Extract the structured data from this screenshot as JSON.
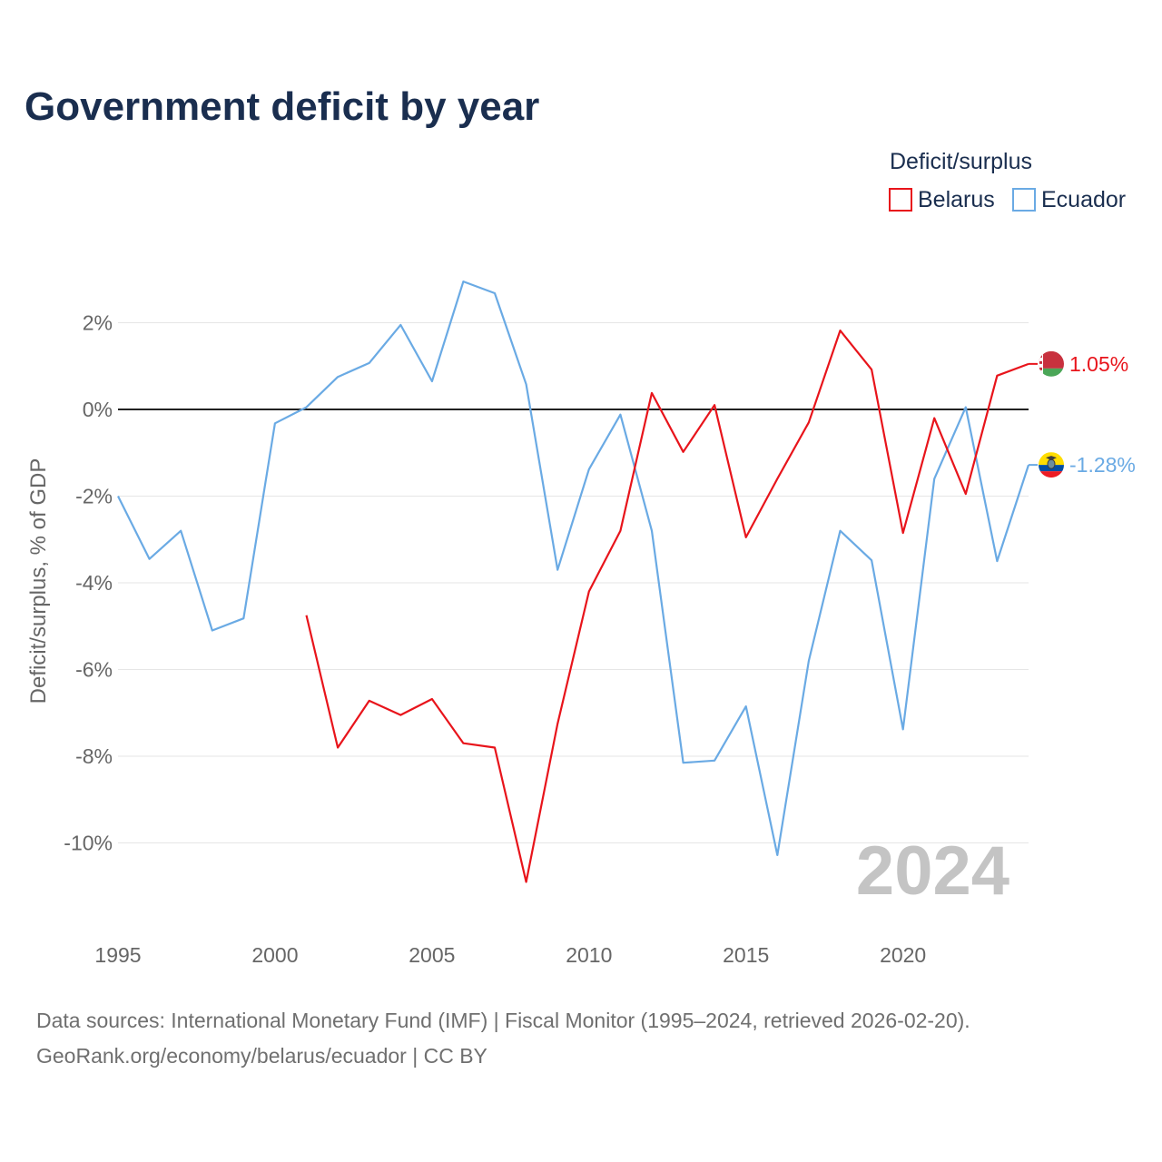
{
  "title": "Government deficit by year",
  "legend": {
    "title": "Deficit/surplus",
    "items": [
      {
        "name": "Belarus",
        "color": "#e8141b"
      },
      {
        "name": "Ecuador",
        "color": "#6aaae4"
      }
    ]
  },
  "year_label": "2024",
  "end_labels": {
    "Belarus": "1.05%",
    "Ecuador": "-1.28%"
  },
  "footer": {
    "line1": "Data sources: International Monetary Fund (IMF) | Fiscal Monitor (1995–2024, retrieved 2026-02-20).",
    "line2": "GeoRank.org/economy/belarus/ecuador | CC BY"
  },
  "chart_data": {
    "type": "line",
    "title": "Government deficit by year",
    "xlabel": "",
    "ylabel": "Deficit/surplus, % of GDP",
    "xlim": [
      1995,
      2024
    ],
    "ylim": [
      -11.5,
      3.3
    ],
    "x_ticks": [
      1995,
      2000,
      2005,
      2010,
      2015,
      2020
    ],
    "y_ticks": [
      2,
      0,
      -2,
      -4,
      -6,
      -8,
      -10
    ],
    "y_tick_labels": [
      "2%",
      "0%",
      "-2%",
      "-4%",
      "-6%",
      "-8%",
      "-10%"
    ],
    "x": [
      1995,
      1996,
      1997,
      1998,
      1999,
      2000,
      2001,
      2002,
      2003,
      2004,
      2005,
      2006,
      2007,
      2008,
      2009,
      2010,
      2011,
      2012,
      2013,
      2014,
      2015,
      2016,
      2017,
      2018,
      2019,
      2020,
      2021,
      2022,
      2023,
      2024
    ],
    "series": [
      {
        "name": "Belarus",
        "color": "#e8141b",
        "values": [
          null,
          null,
          null,
          null,
          null,
          null,
          -4.75,
          -7.8,
          -6.72,
          -7.05,
          -6.68,
          -7.7,
          -7.8,
          -10.9,
          -7.25,
          -4.2,
          -2.8,
          0.38,
          -0.98,
          0.1,
          -2.95,
          -1.6,
          -0.3,
          1.82,
          0.92,
          -2.85,
          -0.2,
          -1.95,
          0.78,
          1.05
        ]
      },
      {
        "name": "Ecuador",
        "color": "#6aaae4",
        "values": [
          -2.0,
          -3.45,
          -2.8,
          -5.1,
          -4.82,
          -0.32,
          0.05,
          0.75,
          1.07,
          1.95,
          0.65,
          2.95,
          2.68,
          0.58,
          -3.7,
          -1.38,
          -0.12,
          -2.8,
          -8.15,
          -8.1,
          -6.85,
          -10.28,
          -5.8,
          -2.8,
          -3.48,
          -7.38,
          -1.6,
          0.05,
          -3.5,
          -1.28
        ]
      }
    ]
  }
}
